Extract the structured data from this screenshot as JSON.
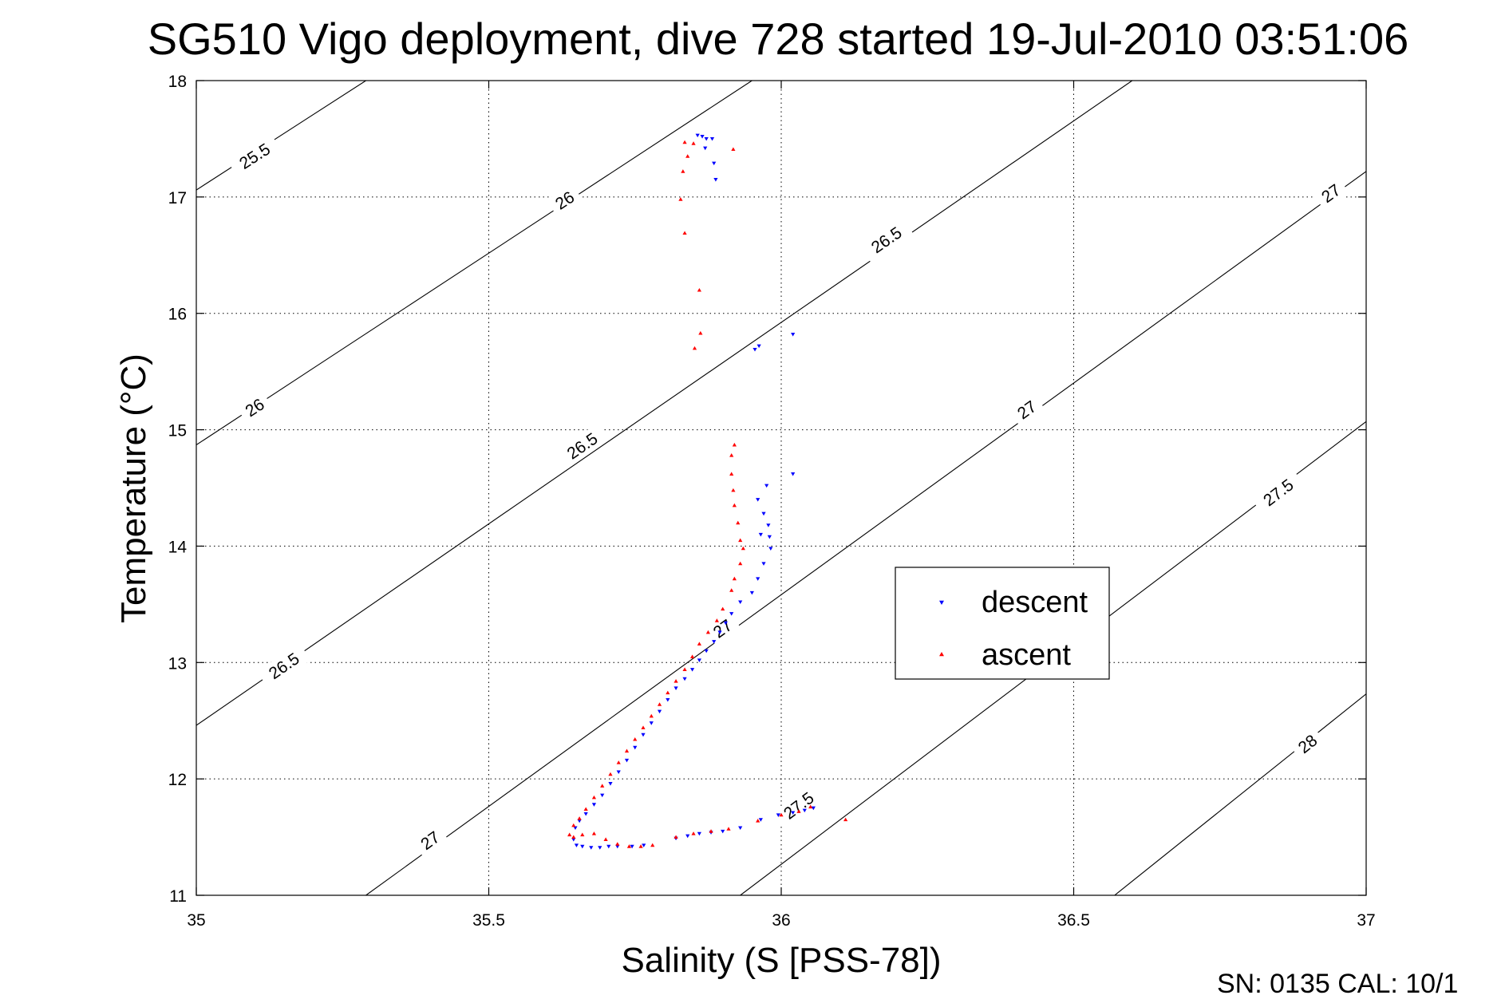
{
  "chart_data": {
    "type": "scatter",
    "title": "SG510 Vigo deployment, dive 728 started 19-Jul-2010 03:51:06",
    "xlabel": "Salinity (S [PSS-78])",
    "ylabel": "Temperature (°C)",
    "xlim": [
      35,
      37
    ],
    "ylim": [
      11,
      18
    ],
    "xticks": [
      "35",
      "35.5",
      "36",
      "36.5",
      "37"
    ],
    "yticks": [
      "11",
      "12",
      "13",
      "14",
      "15",
      "16",
      "17",
      "18"
    ],
    "grid": true,
    "legend_position": "center-right",
    "footer": "SN: 0135  CAL: 10/1",
    "density_contours": [
      {
        "label": "25.5",
        "points": [
          [
            35.0,
            17.06
          ],
          [
            35.29,
            18.0
          ]
        ],
        "label_pos": [
          35.1,
          17.35
        ]
      },
      {
        "label": "26",
        "points": [
          [
            35.0,
            14.87
          ],
          [
            35.95,
            18.0
          ]
        ],
        "label_pos": [
          35.1,
          15.19
        ]
      },
      {
        "label": "26",
        "points": [
          [
            35.0,
            14.87
          ],
          [
            35.95,
            18.0
          ]
        ],
        "label_pos": [
          35.63,
          16.97
        ]
      },
      {
        "label": "26.5",
        "points": [
          [
            35.0,
            12.46
          ],
          [
            36.6,
            18.0
          ]
        ],
        "label_pos": [
          35.15,
          12.97
        ]
      },
      {
        "label": "26.5",
        "points": [
          [
            35.0,
            12.46
          ],
          [
            36.6,
            18.0
          ]
        ],
        "label_pos": [
          35.66,
          14.86
        ]
      },
      {
        "label": "26.5",
        "points": [
          [
            35.0,
            12.46
          ],
          [
            36.6,
            18.0
          ]
        ],
        "label_pos": [
          36.18,
          16.63
        ]
      },
      {
        "label": "27",
        "points": [
          [
            35.29,
            11.0
          ],
          [
            37.0,
            17.22
          ]
        ],
        "label_pos": [
          35.4,
          11.47
        ]
      },
      {
        "label": "27",
        "points": [
          [
            35.29,
            11.0
          ],
          [
            37.0,
            17.22
          ]
        ],
        "label_pos": [
          35.9,
          13.29
        ]
      },
      {
        "label": "27",
        "points": [
          [
            35.29,
            11.0
          ],
          [
            37.0,
            17.22
          ]
        ],
        "label_pos": [
          36.42,
          15.17
        ]
      },
      {
        "label": "27",
        "points": [
          [
            35.29,
            11.0
          ],
          [
            37.0,
            17.22
          ]
        ],
        "label_pos": [
          36.94,
          17.03
        ]
      },
      {
        "label": "27.5",
        "points": [
          [
            35.93,
            11.0
          ],
          [
            37.0,
            15.07
          ]
        ],
        "label_pos": [
          36.03,
          11.77
        ]
      },
      {
        "label": "27.5",
        "points": [
          [
            35.93,
            11.0
          ],
          [
            37.0,
            15.07
          ]
        ],
        "label_pos": [
          36.85,
          14.46
        ]
      },
      {
        "label": "28",
        "points": [
          [
            36.57,
            11.0
          ],
          [
            37.0,
            12.73
          ]
        ],
        "label_pos": [
          36.9,
          12.3
        ]
      }
    ],
    "series": [
      {
        "name": "descent",
        "color": "#0000ff",
        "marker": "triangle-down",
        "x": [
          35.857,
          35.865,
          35.872,
          35.882,
          35.87,
          35.885,
          35.888,
          35.955,
          35.962,
          36.02,
          36.02,
          35.975,
          35.96,
          35.97,
          35.978,
          35.965,
          35.98,
          35.982,
          35.97,
          35.96,
          35.95,
          35.93,
          35.915,
          35.905,
          35.895,
          35.885,
          35.872,
          35.86,
          35.848,
          35.835,
          35.82,
          35.806,
          35.792,
          35.778,
          35.764,
          35.75,
          35.736,
          35.722,
          35.708,
          35.694,
          35.68,
          35.666,
          35.655,
          35.648,
          35.645,
          35.65,
          35.66,
          35.675,
          35.69,
          35.705,
          35.72,
          35.745,
          35.765,
          35.82,
          35.84,
          35.86,
          35.88,
          35.9,
          35.93,
          35.965,
          35.995,
          36.02,
          36.04,
          36.055
        ],
        "y": [
          17.53,
          17.52,
          17.5,
          17.5,
          17.42,
          17.29,
          17.15,
          15.69,
          15.72,
          15.82,
          14.62,
          14.52,
          14.4,
          14.28,
          14.18,
          14.1,
          14.08,
          13.98,
          13.85,
          13.72,
          13.6,
          13.52,
          13.42,
          13.34,
          13.26,
          13.18,
          13.1,
          13.02,
          12.94,
          12.86,
          12.78,
          12.68,
          12.58,
          12.48,
          12.38,
          12.27,
          12.16,
          12.06,
          11.96,
          11.86,
          11.78,
          11.7,
          11.64,
          11.58,
          11.48,
          11.43,
          11.42,
          11.41,
          11.41,
          11.42,
          11.42,
          11.42,
          11.43,
          11.49,
          11.51,
          11.53,
          11.54,
          11.55,
          11.58,
          11.65,
          11.69,
          11.71,
          11.73,
          11.75
        ]
      },
      {
        "name": "ascent",
        "color": "#ff0000",
        "marker": "triangle-up",
        "x": [
          35.835,
          35.85,
          35.84,
          35.832,
          35.828,
          35.835,
          35.918,
          35.86,
          35.852,
          35.862,
          35.92,
          35.915,
          35.915,
          35.918,
          35.92,
          35.926,
          35.93,
          35.935,
          35.93,
          35.92,
          35.915,
          35.9,
          35.89,
          35.875,
          35.86,
          35.848,
          35.835,
          35.82,
          35.806,
          35.792,
          35.778,
          35.764,
          35.75,
          35.736,
          35.722,
          35.708,
          35.694,
          35.68,
          35.666,
          35.655,
          35.645,
          35.638,
          35.645,
          35.66,
          35.68,
          35.7,
          35.72,
          35.74,
          35.76,
          35.78,
          35.82,
          35.85,
          35.88,
          35.91,
          35.96,
          36.0,
          36.03,
          36.05,
          36.11
        ],
        "y": [
          17.47,
          17.46,
          17.35,
          17.22,
          16.98,
          16.69,
          17.41,
          16.2,
          15.7,
          15.83,
          14.87,
          14.78,
          14.62,
          14.48,
          14.35,
          14.2,
          14.05,
          13.98,
          13.85,
          13.72,
          13.62,
          13.46,
          13.36,
          13.26,
          13.16,
          13.05,
          12.94,
          12.84,
          12.74,
          12.64,
          12.54,
          12.44,
          12.34,
          12.24,
          12.14,
          12.04,
          11.94,
          11.84,
          11.74,
          11.66,
          11.6,
          11.52,
          11.5,
          11.52,
          11.53,
          11.48,
          11.44,
          11.42,
          11.42,
          11.43,
          11.5,
          11.53,
          11.55,
          11.57,
          11.64,
          11.69,
          11.72,
          11.76,
          11.65
        ]
      }
    ]
  }
}
